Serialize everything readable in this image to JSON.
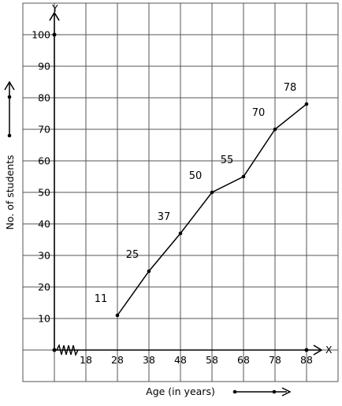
{
  "chart_data": {
    "type": "line",
    "xlabel": "Age (in years)",
    "ylabel": "No. of students",
    "x_axis_letter": "X",
    "y_axis_letter": "Y",
    "x_ticks": [
      "18",
      "28",
      "38",
      "48",
      "58",
      "68",
      "78",
      "88"
    ],
    "y_ticks": [
      "10",
      "20",
      "30",
      "40",
      "50",
      "60",
      "70",
      "80",
      "90",
      "100"
    ],
    "xlim": [
      8,
      88
    ],
    "ylim": [
      0,
      100
    ],
    "grid": true,
    "kink_on_x_axis": true,
    "series": [
      {
        "x": [
          28,
          38,
          48,
          58,
          68,
          78,
          88
        ],
        "y": [
          11,
          25,
          37,
          50,
          55,
          70,
          78
        ],
        "labels": [
          "11",
          "25",
          "37",
          "50",
          "55",
          "70",
          "78"
        ]
      }
    ]
  }
}
